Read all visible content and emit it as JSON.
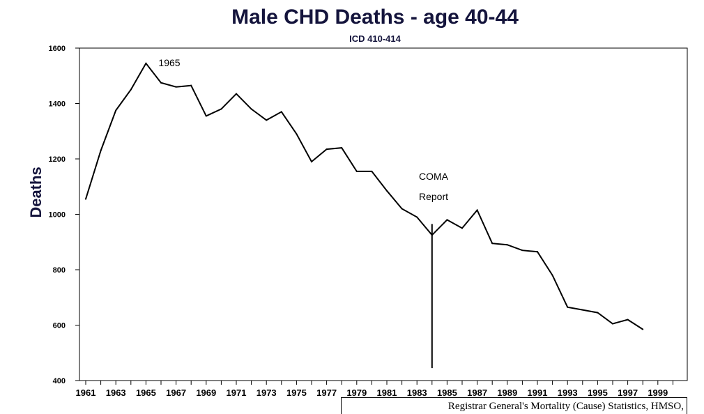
{
  "chart_data": {
    "type": "line",
    "title": "Male CHD Deaths - age 40-44",
    "subtitle": "ICD 410-414",
    "ylabel": "Deaths",
    "xlabel": "",
    "ylim": [
      400,
      1600
    ],
    "xlim": [
      1961,
      1999
    ],
    "yticks": [
      400,
      600,
      800,
      1000,
      1200,
      1400,
      1600
    ],
    "xtick_labels": [
      "1961",
      "1963",
      "1965",
      "1967",
      "1969",
      "1971",
      "1973",
      "1975",
      "1977",
      "1979",
      "1981",
      "1983",
      "1985",
      "1987",
      "1989",
      "1991",
      "1993",
      "1995",
      "1997",
      "1999"
    ],
    "grid": false,
    "color": "#000000",
    "series": [
      {
        "x": [
          1961,
          1962,
          1963,
          1964,
          1965,
          1966,
          1967,
          1968,
          1969,
          1970,
          1971,
          1972,
          1973,
          1974,
          1975,
          1976,
          1977,
          1978,
          1979,
          1980,
          1981,
          1982,
          1983,
          1984,
          1985,
          1986,
          1987,
          1988,
          1989,
          1990,
          1991,
          1992,
          1993,
          1994,
          1995,
          1996,
          1997,
          1998
        ],
        "values": [
          1055,
          1230,
          1375,
          1450,
          1545,
          1475,
          1460,
          1465,
          1355,
          1380,
          1435,
          1380,
          1340,
          1370,
          1290,
          1190,
          1235,
          1240,
          1155,
          1155,
          1085,
          1020,
          990,
          925,
          980,
          950,
          1015,
          895,
          890,
          870,
          865,
          780,
          665,
          655,
          645,
          605,
          620,
          585
        ]
      }
    ],
    "annotations": [
      {
        "text": "1965",
        "x": 1965
      },
      {
        "text": "COMA",
        "x": 1984
      },
      {
        "text": "Report",
        "x": 1984
      }
    ],
    "marker_line": {
      "x": 1984,
      "y_from": 445,
      "y_to": 965
    }
  },
  "source": "Registrar General's Mortality (Cause) Statistics, HMSO,"
}
